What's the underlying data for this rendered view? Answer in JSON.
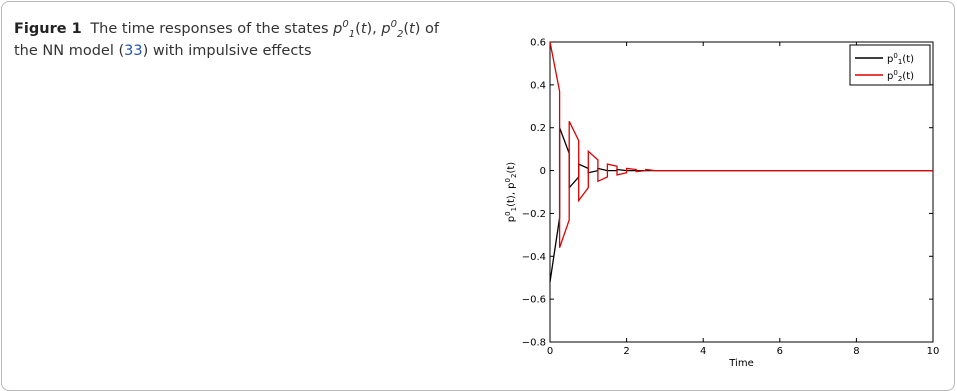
{
  "caption": {
    "label": "Figure 1",
    "text_a": "The time responses of the states ",
    "text_b": ", ",
    "text_c": " of the NN model (",
    "ref": "33",
    "text_d": ") with impulsive effects",
    "p": "p",
    "t": "t",
    "sup0": "0",
    "sub1": "1",
    "sub2": "2"
  },
  "chart_data": {
    "type": "line",
    "xlabel": "Time",
    "ylabel": "p1^0(t), p2^0(t)",
    "xlim": [
      0,
      10
    ],
    "ylim": [
      -0.8,
      0.6
    ],
    "xticks": [
      "0",
      "2",
      "4",
      "6",
      "8",
      "10"
    ],
    "yticks": [
      "−0.8",
      "−0.6",
      "−0.4",
      "−0.2",
      "0",
      "0.2",
      "0.4",
      "0.6"
    ],
    "legend_position": "top-right",
    "grid": false,
    "series": [
      {
        "name": "p1^0(t)",
        "color": "#000000",
        "x": [
          0,
          0.25,
          0.25,
          0.5,
          0.5,
          0.75,
          0.75,
          1.0,
          1.0,
          1.25,
          1.25,
          1.5,
          1.5,
          1.75,
          1.75,
          2.0,
          2.0,
          2.25,
          2.25,
          2.5,
          2.5,
          2.75,
          2.75,
          3.0,
          10
        ],
        "y": [
          -0.52,
          -0.22,
          0.2,
          0.08,
          -0.08,
          -0.03,
          0.03,
          0.01,
          -0.01,
          0.0,
          0.01,
          0.0,
          0.0,
          0.0,
          0.005,
          0.0,
          0.0,
          0.0,
          0.0,
          0.0,
          0.0,
          0.0,
          0.0,
          0.0,
          0.0
        ]
      },
      {
        "name": "p2^0(t)",
        "color": "#dd0000",
        "x": [
          0,
          0.25,
          0.25,
          0.5,
          0.5,
          0.75,
          0.75,
          1.0,
          1.0,
          1.25,
          1.25,
          1.5,
          1.5,
          1.75,
          1.75,
          2.0,
          2.0,
          2.25,
          2.25,
          2.5,
          2.5,
          2.75,
          2.75,
          3.0,
          10
        ],
        "y": [
          0.6,
          0.37,
          -0.36,
          -0.23,
          0.23,
          0.14,
          -0.14,
          -0.08,
          0.09,
          0.05,
          -0.05,
          -0.03,
          0.03,
          0.02,
          -0.02,
          -0.01,
          0.01,
          0.005,
          -0.005,
          0.0,
          0.005,
          0.0,
          0.0,
          0.0,
          0.0
        ]
      }
    ]
  }
}
